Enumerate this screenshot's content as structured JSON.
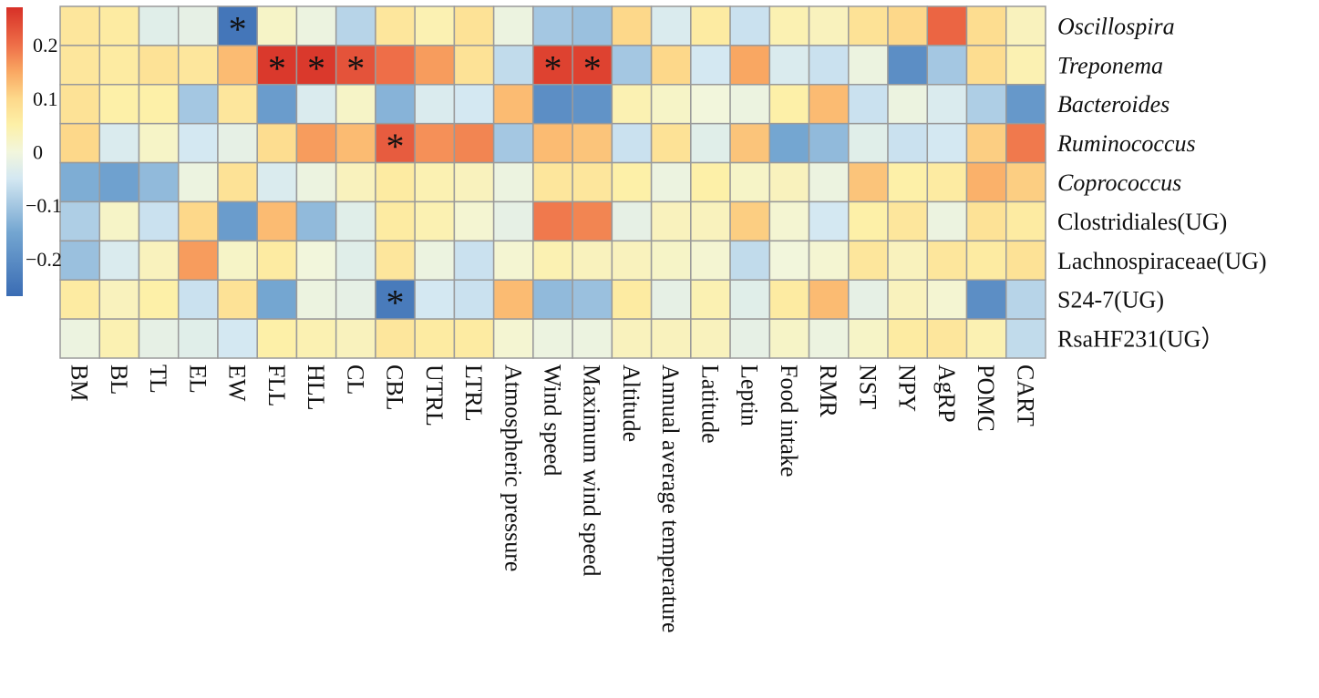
{
  "chart_data": {
    "type": "heatmap",
    "columns": [
      "BM",
      "BL",
      "TL",
      "EL",
      "EW",
      "FLL",
      "HLL",
      "CL",
      "CBL",
      "UTRL",
      "LTRL",
      "Atmospheric pressure",
      "Wind speed",
      "Maximum wind speed",
      "Altitude",
      "Annual average temperature",
      "Latitude",
      "Leptin",
      "Food intake",
      "RMR",
      "NST",
      "NPY",
      "AgRP",
      "POMC",
      "CART"
    ],
    "rows": [
      {
        "label": "Oscillospira",
        "italic": true,
        "values": [
          0.07,
          0.06,
          -0.03,
          -0.02,
          -0.25,
          0.02,
          -0.01,
          -0.08,
          0.07,
          0.04,
          0.08,
          -0.01,
          -0.1,
          -0.11,
          0.1,
          -0.04,
          0.06,
          -0.06,
          0.04,
          0.03,
          0.08,
          0.1,
          0.21,
          0.09,
          0.03
        ],
        "significant": [
          4
        ]
      },
      {
        "label": "Treponema",
        "italic": true,
        "values": [
          0.07,
          0.06,
          0.08,
          0.07,
          0.13,
          0.26,
          0.26,
          0.23,
          0.2,
          0.16,
          0.08,
          -0.07,
          0.25,
          0.25,
          -0.1,
          0.1,
          -0.05,
          0.15,
          -0.04,
          -0.06,
          -0.01,
          -0.2,
          -0.1,
          0.09,
          0.04
        ],
        "significant": [
          5,
          6,
          7,
          12,
          13
        ]
      },
      {
        "label": "Bacteroides",
        "italic": true,
        "values": [
          0.08,
          0.05,
          0.05,
          -0.1,
          0.07,
          -0.17,
          -0.04,
          0.02,
          -0.13,
          -0.04,
          -0.05,
          0.13,
          -0.2,
          -0.19,
          0.04,
          0.02,
          0.0,
          -0.01,
          0.05,
          0.13,
          -0.06,
          -0.01,
          -0.04,
          -0.09,
          -0.18
        ],
        "significant": []
      },
      {
        "label": "Ruminococcus",
        "italic": true,
        "values": [
          0.1,
          -0.04,
          0.02,
          -0.05,
          -0.02,
          0.09,
          0.16,
          0.13,
          0.22,
          0.17,
          0.18,
          -0.1,
          0.13,
          0.12,
          -0.06,
          0.08,
          -0.03,
          0.12,
          -0.15,
          -0.12,
          -0.03,
          -0.06,
          -0.05,
          0.11,
          0.19
        ],
        "significant": [
          8
        ]
      },
      {
        "label": "Coprococcus",
        "italic": true,
        "values": [
          -0.14,
          -0.16,
          -0.12,
          -0.01,
          0.08,
          -0.04,
          -0.01,
          0.03,
          0.06,
          0.04,
          0.03,
          -0.01,
          0.07,
          0.07,
          0.05,
          -0.01,
          0.05,
          0.02,
          0.03,
          -0.01,
          0.12,
          0.05,
          0.06,
          0.14,
          0.11
        ],
        "significant": []
      },
      {
        "label": "Clostridiales(UG)",
        "italic": false,
        "values": [
          -0.09,
          0.02,
          -0.06,
          0.1,
          -0.17,
          0.13,
          -0.12,
          -0.03,
          0.06,
          0.04,
          0.01,
          -0.02,
          0.19,
          0.18,
          -0.02,
          0.03,
          0.03,
          0.11,
          0.01,
          -0.05,
          0.05,
          0.07,
          -0.01,
          0.08,
          0.06
        ],
        "significant": []
      },
      {
        "label": "Lachnospiraceae(UG)",
        "italic": false,
        "values": [
          -0.11,
          -0.04,
          0.03,
          0.16,
          0.02,
          0.06,
          0.0,
          -0.03,
          0.07,
          -0.01,
          -0.06,
          0.01,
          0.04,
          0.03,
          0.03,
          0.02,
          0.01,
          -0.07,
          0.0,
          0.01,
          0.07,
          0.03,
          0.07,
          0.06,
          0.08
        ],
        "significant": []
      },
      {
        "label": "S24-7(UG)",
        "italic": false,
        "values": [
          0.06,
          0.03,
          0.05,
          -0.06,
          0.08,
          -0.15,
          -0.01,
          -0.02,
          -0.24,
          -0.05,
          -0.06,
          0.13,
          -0.12,
          -0.11,
          0.06,
          -0.02,
          0.04,
          -0.03,
          0.06,
          0.13,
          -0.02,
          0.03,
          0.01,
          -0.2,
          -0.08
        ],
        "significant": [
          8
        ]
      },
      {
        "label": "RsaHF231(UG）",
        "italic": false,
        "values": [
          -0.01,
          0.04,
          -0.02,
          -0.03,
          -0.05,
          0.05,
          0.04,
          0.03,
          0.07,
          0.06,
          0.06,
          0.01,
          -0.01,
          -0.01,
          0.03,
          0.03,
          0.03,
          -0.02,
          0.02,
          -0.01,
          0.02,
          0.06,
          0.07,
          0.04,
          -0.07
        ],
        "significant": []
      }
    ],
    "significance_marker": "*",
    "colorbar": {
      "range": [
        -0.27,
        0.27
      ],
      "ticks": [
        {
          "value": 0.2,
          "label": "0.2"
        },
        {
          "value": 0.1,
          "label": "0.1"
        },
        {
          "value": 0,
          "label": "0"
        },
        {
          "value": -0.1,
          "label": "−0.1"
        },
        {
          "value": -0.2,
          "label": "−0.2"
        }
      ],
      "colors": [
        {
          "v": -0.27,
          "c": "#3a6cb4"
        },
        {
          "v": -0.15,
          "c": "#74a6d1"
        },
        {
          "v": -0.05,
          "c": "#d4e8f2"
        },
        {
          "v": 0.0,
          "c": "#f2f6dc"
        },
        {
          "v": 0.05,
          "c": "#fdf0a8"
        },
        {
          "v": 0.1,
          "c": "#fdd88a"
        },
        {
          "v": 0.15,
          "c": "#f9a762"
        },
        {
          "v": 0.2,
          "c": "#ee6e48"
        },
        {
          "v": 0.27,
          "c": "#d73027"
        }
      ]
    },
    "grid_color": "#9a9a9a"
  }
}
